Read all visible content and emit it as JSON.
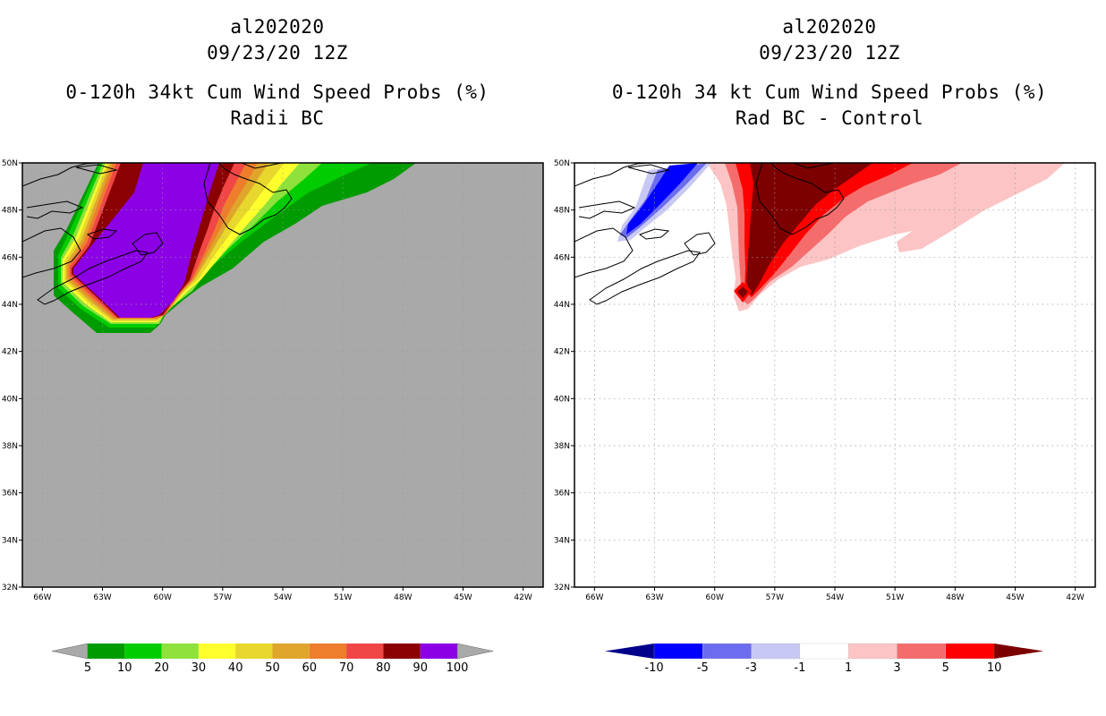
{
  "left_panel": {
    "title_lines": [
      "al202020",
      "09/23/20 12Z",
      "0-120h 34kt Cum Wind Speed Probs (%)",
      "Radii BC"
    ]
  },
  "right_panel": {
    "title_lines": [
      "al202020",
      "09/23/20 12Z",
      "0-120h 34 kt Cum Wind Speed Probs (%)",
      "Rad BC - Control"
    ]
  },
  "chart_data": [
    {
      "type": "heatmap",
      "title": "0-120h 34kt Cum Wind Speed Probs (%) - Radii BC",
      "x_range": [
        -67,
        -41
      ],
      "y_range": [
        32,
        50
      ],
      "xticks": [
        "66W",
        "63W",
        "60W",
        "57W",
        "54W",
        "51W",
        "48W",
        "45W",
        "42W"
      ],
      "xtick_values": [
        -66,
        -63,
        -60,
        -57,
        -54,
        -51,
        -48,
        -45,
        -42
      ],
      "yticks": [
        "32N",
        "34N",
        "36N",
        "38N",
        "40N",
        "42N",
        "44N",
        "46N",
        "48N",
        "50N"
      ],
      "ytick_values": [
        32,
        34,
        36,
        38,
        40,
        42,
        44,
        46,
        48,
        50
      ],
      "background_color": "#a9a9a9",
      "colorbar": {
        "labels": [
          "5",
          "10",
          "20",
          "30",
          "40",
          "50",
          "60",
          "70",
          "80",
          "90",
          "100"
        ],
        "colors": [
          "#009b00",
          "#00cd00",
          "#8ee23b",
          "#ffff2e",
          "#e8d72c",
          "#e0a62c",
          "#ee7d2c",
          "#f04646",
          "#8b0000",
          "#8c00e6"
        ],
        "end_color": "#a9a9a9"
      }
    },
    {
      "type": "heatmap",
      "title": "0-120h 34 kt Cum Wind Speed Probs (%) - Rad BC - Control",
      "x_range": [
        -67,
        -41
      ],
      "y_range": [
        32,
        50
      ],
      "xticks": [
        "66W",
        "63W",
        "60W",
        "57W",
        "54W",
        "51W",
        "48W",
        "45W",
        "42W"
      ],
      "xtick_values": [
        -66,
        -63,
        -60,
        -57,
        -54,
        -51,
        -48,
        -45,
        -42
      ],
      "yticks": [
        "32N",
        "34N",
        "36N",
        "38N",
        "40N",
        "42N",
        "44N",
        "46N",
        "48N",
        "50N"
      ],
      "ytick_values": [
        32,
        34,
        36,
        38,
        40,
        42,
        44,
        46,
        48,
        50
      ],
      "background_color": "#ffffff",
      "colorbar": {
        "labels": [
          "-10",
          "-5",
          "-3",
          "-1",
          "1",
          "3",
          "5",
          "10"
        ],
        "colors": [
          "#0000ff",
          "#6c6cf0",
          "#c8c8f5",
          "#ffffff",
          "#fcc4c4",
          "#f56c6c",
          "#ff0000"
        ],
        "low_end_color": "#00008b",
        "high_end_color": "#7d0000"
      }
    }
  ]
}
